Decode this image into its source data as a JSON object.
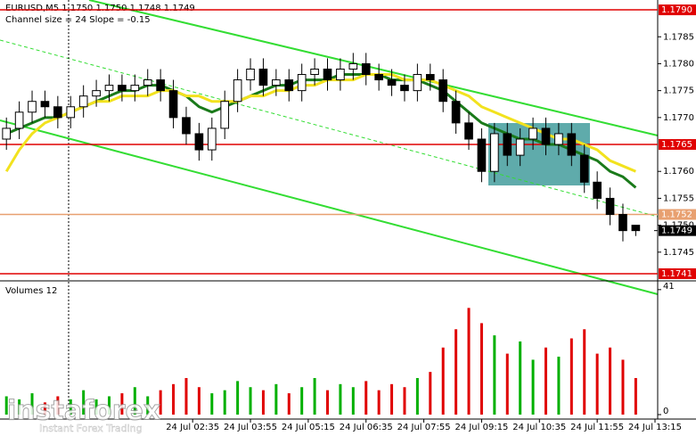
{
  "chart_data": {
    "type": "candlestick",
    "title": "EURUSD,M5  1.1750 1.1750 1.1748 1.1749",
    "subtitle": "Channel size = 24 Slope = -0.15",
    "volume_title": "Volumes 12",
    "watermark": {
      "brand": "instaforex",
      "tagline": "Instant Forex Trading"
    },
    "open": [
      1.1766,
      1.1768,
      1.1771,
      1.1773,
      1.1772,
      1.177,
      1.1772,
      1.1774,
      1.1775,
      1.1776,
      1.1775,
      1.1776,
      1.1777,
      1.1775,
      1.177,
      1.1767,
      1.1764,
      1.1768,
      1.1773,
      1.1777,
      1.1779,
      1.1776,
      1.1777,
      1.1775,
      1.1778,
      1.1779,
      1.1777,
      1.1779,
      1.178,
      1.1778,
      1.1777,
      1.1776,
      1.1775,
      1.1778,
      1.1777,
      1.1773,
      1.1769,
      1.1766,
      1.176,
      1.1767,
      1.1763,
      1.1766,
      1.1768,
      1.1765,
      1.1767,
      1.1763,
      1.1758,
      1.1755,
      1.1752,
      1.175
    ],
    "high": [
      1.177,
      1.1773,
      1.1775,
      1.1775,
      1.1774,
      1.1774,
      1.1776,
      1.1777,
      1.1778,
      1.1778,
      1.1778,
      1.1779,
      1.1779,
      1.1777,
      1.1772,
      1.1769,
      1.177,
      1.1775,
      1.1779,
      1.1781,
      1.1781,
      1.1779,
      1.1779,
      1.178,
      1.1781,
      1.1781,
      1.1781,
      1.1782,
      1.1782,
      1.178,
      1.1779,
      1.1778,
      1.178,
      1.178,
      1.1779,
      1.1775,
      1.1771,
      1.1768,
      1.1769,
      1.1769,
      1.1768,
      1.177,
      1.177,
      1.1769,
      1.1769,
      1.1765,
      1.176,
      1.1757,
      1.1754,
      1.175
    ],
    "low": [
      1.1764,
      1.1766,
      1.1769,
      1.177,
      1.1768,
      1.1768,
      1.177,
      1.1772,
      1.1773,
      1.1773,
      1.1773,
      1.1774,
      1.1773,
      1.1768,
      1.1765,
      1.1762,
      1.1762,
      1.1766,
      1.1771,
      1.1775,
      1.1774,
      1.1774,
      1.1773,
      1.1773,
      1.1776,
      1.1775,
      1.1775,
      1.1777,
      1.1776,
      1.1775,
      1.1774,
      1.1773,
      1.1773,
      1.1775,
      1.1771,
      1.1767,
      1.1764,
      1.1758,
      1.1758,
      1.1761,
      1.1761,
      1.1764,
      1.1763,
      1.1763,
      1.1761,
      1.1756,
      1.1753,
      1.175,
      1.1747,
      1.1748
    ],
    "close": [
      1.1768,
      1.1771,
      1.1773,
      1.1772,
      1.177,
      1.1772,
      1.1774,
      1.1775,
      1.1776,
      1.1775,
      1.1776,
      1.1777,
      1.1775,
      1.177,
      1.1767,
      1.1764,
      1.1768,
      1.1773,
      1.1777,
      1.1779,
      1.1776,
      1.1777,
      1.1775,
      1.1778,
      1.1779,
      1.1777,
      1.1779,
      1.178,
      1.1778,
      1.1777,
      1.1776,
      1.1775,
      1.1778,
      1.1777,
      1.1773,
      1.1769,
      1.1766,
      1.176,
      1.1767,
      1.1763,
      1.1766,
      1.1768,
      1.1765,
      1.1767,
      1.1763,
      1.1758,
      1.1755,
      1.1752,
      1.1749,
      1.1749
    ],
    "volumes": [
      6,
      5,
      7,
      4,
      6,
      5,
      8,
      5,
      6,
      7,
      9,
      6,
      8,
      10,
      12,
      9,
      7,
      8,
      11,
      9,
      8,
      10,
      7,
      9,
      12,
      8,
      10,
      9,
      11,
      8,
      10,
      9,
      12,
      14,
      22,
      28,
      35,
      30,
      26,
      20,
      24,
      18,
      22,
      19,
      25,
      28,
      20,
      22,
      18,
      12
    ],
    "up_color": "#00b000",
    "down_color": "#e00000",
    "indicators": [
      {
        "color": "#1a7a1a",
        "values": [
          1.1767,
          1.1768,
          1.1769,
          1.177,
          1.177,
          1.1771,
          1.1772,
          1.1773,
          1.1774,
          1.1775,
          1.1775,
          1.1776,
          1.1776,
          1.1775,
          1.1774,
          1.1772,
          1.1771,
          1.1772,
          1.1773,
          1.1774,
          1.1775,
          1.1776,
          1.1776,
          1.1777,
          1.1777,
          1.1777,
          1.1778,
          1.1778,
          1.1778,
          1.1778,
          1.1777,
          1.1777,
          1.1777,
          1.1776,
          1.1775,
          1.1773,
          1.1771,
          1.1769,
          1.1768,
          1.1767,
          1.1766,
          1.1766,
          1.1765,
          1.1765,
          1.1764,
          1.1763,
          1.1762,
          1.176,
          1.1759,
          1.1757
        ]
      },
      {
        "color": "#f2e21e",
        "values": [
          1.176,
          1.1764,
          1.1767,
          1.1769,
          1.177,
          1.1771,
          1.1772,
          1.1773,
          1.1773,
          1.1774,
          1.1774,
          1.1774,
          1.1775,
          1.1775,
          1.1774,
          1.1774,
          1.1773,
          1.1773,
          1.1773,
          1.1774,
          1.1774,
          1.1775,
          1.1775,
          1.1776,
          1.1776,
          1.1777,
          1.1777,
          1.1777,
          1.1778,
          1.1778,
          1.1778,
          1.1777,
          1.1777,
          1.1777,
          1.1776,
          1.1775,
          1.1774,
          1.1772,
          1.1771,
          1.177,
          1.1769,
          1.1768,
          1.1767,
          1.1766,
          1.1766,
          1.1765,
          1.1764,
          1.1762,
          1.1761,
          1.176
        ]
      }
    ],
    "ylim": [
      1.174,
      1.17915
    ],
    "yticks": [
      {
        "value": 1.1745,
        "label": "1.1745"
      },
      {
        "value": 1.175,
        "label": "1.1750"
      },
      {
        "value": 1.1755,
        "label": "1.1755"
      },
      {
        "value": 1.176,
        "label": "1.1760"
      },
      {
        "value": 1.177,
        "label": "1.1770"
      },
      {
        "value": 1.1775,
        "label": "1.1775"
      },
      {
        "value": 1.178,
        "label": "1.1780"
      },
      {
        "value": 1.1785,
        "label": "1.1785"
      }
    ],
    "levels": [
      {
        "value": 1.179,
        "label": "1.1790",
        "color": "#e00000"
      },
      {
        "value": 1.1765,
        "label": "1.1765",
        "color": "#e00000"
      },
      {
        "value": 1.1752,
        "label": "1.1752",
        "color": "#e8a070"
      },
      {
        "value": 1.1741,
        "label": "1.1741",
        "color": "#e00000"
      }
    ],
    "last": {
      "value": 1.1749,
      "label": "1.1749"
    },
    "vlim": [
      0,
      43
    ],
    "vticks": [
      0,
      41
    ],
    "xticks": [
      {
        "value": 14.5,
        "label": "24 Jul 02:35"
      },
      {
        "value": 19,
        "label": "24 Jul 03:55"
      },
      {
        "value": 23.5,
        "label": "24 Jul 05:15"
      },
      {
        "value": 28,
        "label": "24 Jul 06:35"
      },
      {
        "value": 32.5,
        "label": "24 Jul 07:55"
      },
      {
        "value": 37,
        "label": "24 Jul 09:15"
      },
      {
        "value": 41.5,
        "label": "24 Jul 10:35"
      },
      {
        "value": 46,
        "label": "24 Jul 11:55"
      },
      {
        "value": 50.5,
        "label": "24 Jul 13:15"
      }
    ]
  }
}
